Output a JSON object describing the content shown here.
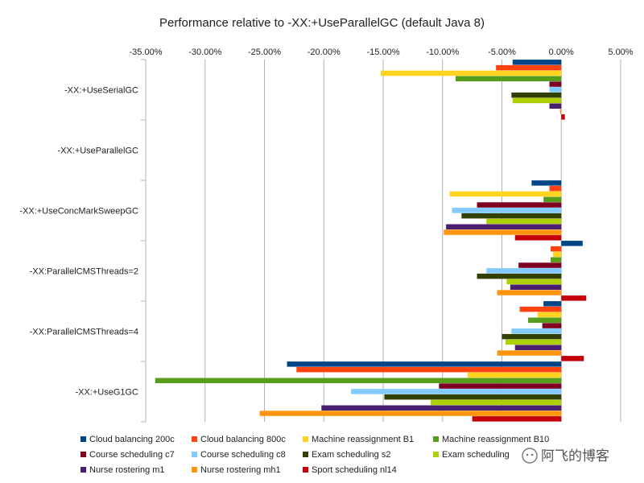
{
  "chart_data": {
    "type": "bar",
    "orientation": "horizontal",
    "title": "Performance relative to -XX:+UseParallelGC (default Java 8)",
    "xlabel": "",
    "ylabel": "",
    "xlim": [
      -35,
      5
    ],
    "x_ticks": [
      -35,
      -30,
      -25,
      -20,
      -15,
      -10,
      -5,
      0,
      5
    ],
    "x_tick_labels": [
      "-35.00%",
      "-30.00%",
      "-25.00%",
      "-20.00%",
      "-15.00%",
      "-10.00%",
      "-5.00%",
      "0.00%",
      "5.00%"
    ],
    "x_axis_position": "top",
    "grid": true,
    "legend_position": "bottom",
    "categories": [
      "-XX:+UseSerialGC",
      "-XX:+UseParallelGC",
      "-XX:+UseConcMarkSweepGC",
      "-XX:ParallelCMSThreads=2",
      "-XX:ParallelCMSThreads=4",
      "-XX:+UseG1GC"
    ],
    "series": [
      {
        "name": "Cloud balancing 200c",
        "color": "#004586",
        "values": [
          -4.1,
          0,
          -2.5,
          1.8,
          -1.5,
          -23.1
        ]
      },
      {
        "name": "Cloud balancing 800c",
        "color": "#ff420e",
        "values": [
          -5.5,
          0,
          -1.0,
          -0.9,
          -3.5,
          -22.3
        ]
      },
      {
        "name": "Machine reassignment B1",
        "color": "#ffd320",
        "values": [
          -15.2,
          0,
          -9.4,
          -0.7,
          -2.0,
          -7.9
        ]
      },
      {
        "name": "Machine reassignment B10",
        "color": "#579d1c",
        "values": [
          -8.9,
          0,
          -1.5,
          -0.9,
          -2.8,
          -34.2
        ]
      },
      {
        "name": "Course scheduling c7",
        "color": "#7e0021",
        "values": [
          -1.0,
          0,
          -7.1,
          -3.6,
          -1.6,
          -10.3
        ]
      },
      {
        "name": "Course scheduling c8",
        "color": "#83caff",
        "values": [
          -1.0,
          0,
          -9.2,
          -6.3,
          -4.2,
          -17.7
        ]
      },
      {
        "name": "Exam scheduling s2",
        "color": "#314004",
        "values": [
          -4.2,
          0,
          -8.4,
          -7.1,
          -5.0,
          -14.9
        ]
      },
      {
        "name": "Exam scheduling",
        "color": "#aecf00",
        "values": [
          -4.1,
          0,
          -6.3,
          -4.6,
          -4.7,
          -11.0
        ]
      },
      {
        "name": "Nurse rostering m1",
        "color": "#4b1f6f",
        "values": [
          -1.0,
          0,
          -9.7,
          -4.3,
          -3.9,
          -20.2
        ]
      },
      {
        "name": "Nurse rostering mh1",
        "color": "#ff950e",
        "values": [
          -0.1,
          0,
          -9.9,
          -5.4,
          -5.4,
          -25.4
        ]
      },
      {
        "name": "Sport scheduling nl14",
        "color": "#c5000b",
        "values": [
          0.3,
          0,
          -3.9,
          2.1,
          1.9,
          -7.5
        ]
      }
    ]
  },
  "watermark": {
    "text": "阿飞的博客",
    "icon": "wechat-icon"
  }
}
